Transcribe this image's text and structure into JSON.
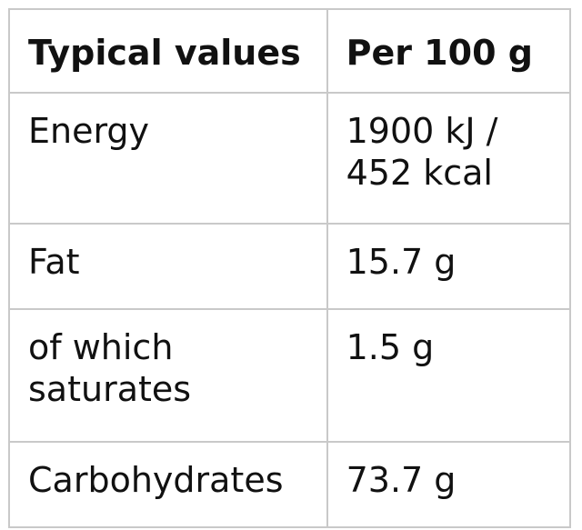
{
  "table": {
    "header": {
      "label": "Typical values",
      "value": "Per 100 g"
    },
    "rows": [
      {
        "label_lines": [
          "Energy"
        ],
        "value_lines": [
          "1900 kJ /",
          "452 kcal"
        ]
      },
      {
        "label_lines": [
          "Fat"
        ],
        "value_lines": [
          "15.7 g"
        ]
      },
      {
        "label_lines": [
          "of which",
          "saturates"
        ],
        "value_lines": [
          "1.5 g"
        ]
      },
      {
        "label_lines": [
          "Carbohydrates"
        ],
        "value_lines": [
          "73.7 g"
        ]
      }
    ]
  }
}
